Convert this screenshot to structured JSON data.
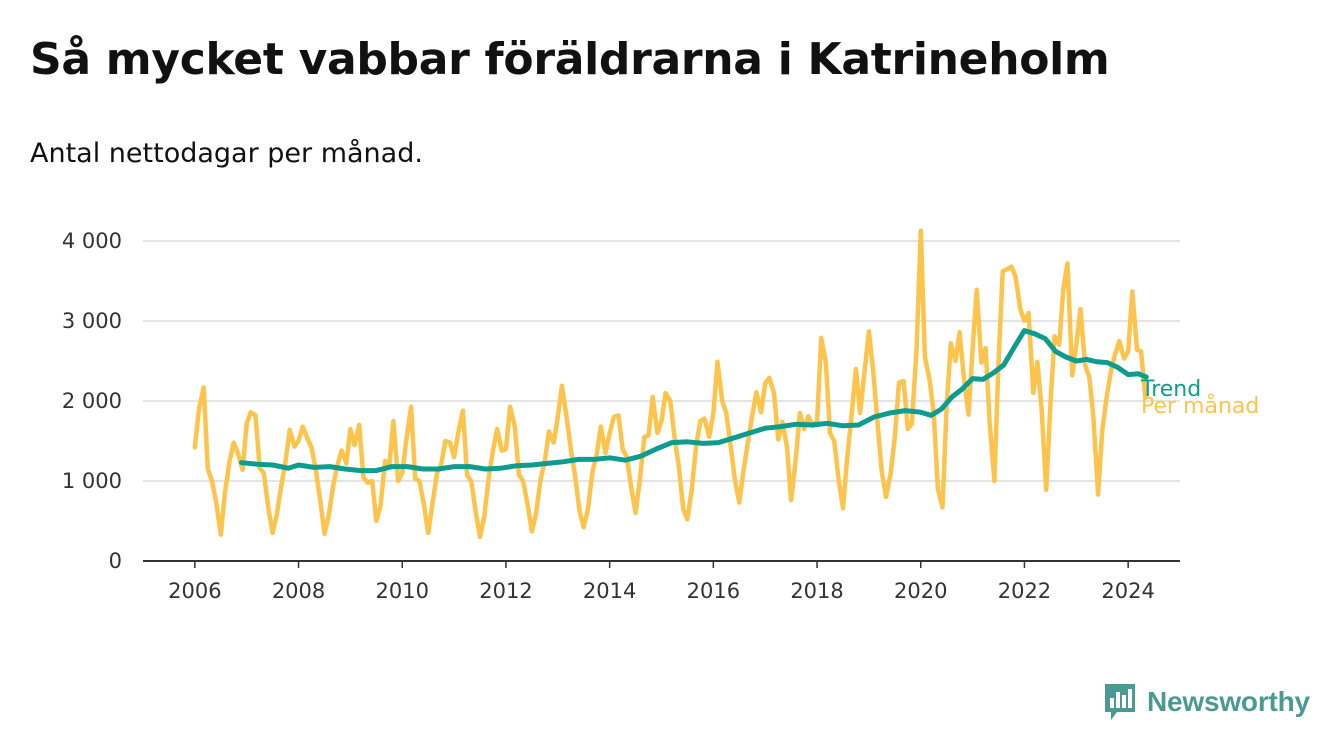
{
  "header": {
    "title": "Så mycket vabbar föräldrarna i Katrineholm",
    "subtitle": "Antal nettodagar per månad."
  },
  "brand": {
    "name": "Newsworthy",
    "icon": "bar-chart-speech-icon",
    "color": "#4a9a93"
  },
  "chart_data": {
    "type": "line",
    "x_axis": {
      "min": 2005.0,
      "max": 2025.0,
      "ticks": [
        "2006",
        "2008",
        "2010",
        "2012",
        "2014",
        "2016",
        "2018",
        "2020",
        "2022",
        "2024"
      ]
    },
    "y_axis": {
      "min": 0,
      "max": 4200,
      "ticks": [
        0,
        1000,
        2000,
        3000,
        4000
      ],
      "tick_labels": [
        "0",
        "1 000",
        "2 000",
        "3 000",
        "4 000"
      ]
    },
    "grid": "horizontal",
    "legend": "end-of-line labels",
    "series": [
      {
        "name": "Per månad",
        "color": "#fcc44c",
        "x": [
          2006.0,
          2006.08,
          2006.17,
          2006.25,
          2006.33,
          2006.42,
          2006.5,
          2006.58,
          2006.67,
          2006.75,
          2006.83,
          2006.92,
          2007.0,
          2007.08,
          2007.17,
          2007.25,
          2007.33,
          2007.42,
          2007.5,
          2007.58,
          2007.67,
          2007.75,
          2007.83,
          2007.92,
          2008.0,
          2008.08,
          2008.17,
          2008.25,
          2008.33,
          2008.42,
          2008.5,
          2008.58,
          2008.67,
          2008.75,
          2008.83,
          2008.92,
          2009.0,
          2009.08,
          2009.17,
          2009.25,
          2009.33,
          2009.42,
          2009.5,
          2009.58,
          2009.67,
          2009.75,
          2009.83,
          2009.92,
          2010.0,
          2010.08,
          2010.17,
          2010.25,
          2010.33,
          2010.42,
          2010.5,
          2010.58,
          2010.67,
          2010.75,
          2010.83,
          2010.92,
          2011.0,
          2011.08,
          2011.17,
          2011.25,
          2011.33,
          2011.42,
          2011.5,
          2011.58,
          2011.67,
          2011.75,
          2011.83,
          2011.92,
          2012.0,
          2012.08,
          2012.17,
          2012.25,
          2012.33,
          2012.42,
          2012.5,
          2012.58,
          2012.67,
          2012.75,
          2012.83,
          2012.92,
          2013.0,
          2013.08,
          2013.17,
          2013.25,
          2013.33,
          2013.42,
          2013.5,
          2013.58,
          2013.67,
          2013.75,
          2013.83,
          2013.92,
          2014.0,
          2014.08,
          2014.17,
          2014.25,
          2014.33,
          2014.42,
          2014.5,
          2014.58,
          2014.67,
          2014.75,
          2014.83,
          2014.92,
          2015.0,
          2015.08,
          2015.17,
          2015.25,
          2015.33,
          2015.42,
          2015.5,
          2015.58,
          2015.67,
          2015.75,
          2015.83,
          2015.92,
          2016.0,
          2016.08,
          2016.17,
          2016.25,
          2016.33,
          2016.42,
          2016.5,
          2016.58,
          2016.67,
          2016.75,
          2016.83,
          2016.92,
          2017.0,
          2017.08,
          2017.17,
          2017.25,
          2017.33,
          2017.42,
          2017.5,
          2017.58,
          2017.67,
          2017.75,
          2017.83,
          2017.92,
          2018.0,
          2018.08,
          2018.17,
          2018.25,
          2018.33,
          2018.42,
          2018.5,
          2018.58,
          2018.67,
          2018.75,
          2018.83,
          2018.92,
          2019.0,
          2019.08,
          2019.17,
          2019.25,
          2019.33,
          2019.42,
          2019.5,
          2019.58,
          2019.67,
          2019.75,
          2019.83,
          2019.92,
          2020.0,
          2020.08,
          2020.17,
          2020.25,
          2020.33,
          2020.42,
          2020.5,
          2020.58,
          2020.67,
          2020.75,
          2020.83,
          2020.92,
          2021.0,
          2021.08,
          2021.17,
          2021.25,
          2021.33,
          2021.42,
          2021.5,
          2021.58,
          2021.67,
          2021.75,
          2021.83,
          2021.92,
          2022.0,
          2022.08,
          2022.17,
          2022.25,
          2022.33,
          2022.42,
          2022.5,
          2022.58,
          2022.67,
          2022.75,
          2022.83,
          2022.92,
          2023.0,
          2023.08,
          2023.17,
          2023.25,
          2023.33,
          2023.42,
          2023.5,
          2023.58,
          2023.67,
          2023.75,
          2023.83,
          2023.92,
          2024.0,
          2024.08,
          2024.17,
          2024.25,
          2024.33
        ],
        "values": [
          1420,
          1900,
          2170,
          1150,
          1000,
          700,
          330,
          850,
          1250,
          1480,
          1350,
          1140,
          1720,
          1860,
          1820,
          1160,
          1100,
          650,
          350,
          580,
          950,
          1250,
          1640,
          1430,
          1500,
          1680,
          1530,
          1420,
          1150,
          750,
          340,
          560,
          950,
          1200,
          1380,
          1220,
          1650,
          1450,
          1700,
          1050,
          980,
          1000,
          500,
          690,
          1250,
          1200,
          1750,
          1000,
          1100,
          1520,
          1930,
          1030,
          1000,
          700,
          350,
          700,
          1100,
          1200,
          1500,
          1480,
          1300,
          1600,
          1880,
          1070,
          1000,
          600,
          300,
          550,
          1050,
          1380,
          1650,
          1380,
          1400,
          1930,
          1680,
          1080,
          1000,
          700,
          370,
          590,
          1030,
          1250,
          1620,
          1480,
          1800,
          2190,
          1800,
          1400,
          1080,
          620,
          420,
          650,
          1120,
          1330,
          1680,
          1350,
          1600,
          1800,
          1820,
          1400,
          1300,
          900,
          600,
          1000,
          1550,
          1570,
          2050,
          1600,
          1750,
          2100,
          2000,
          1550,
          1200,
          650,
          520,
          880,
          1450,
          1750,
          1780,
          1550,
          1850,
          2490,
          2000,
          1850,
          1450,
          1000,
          730,
          1120,
          1500,
          1820,
          2110,
          1860,
          2220,
          2290,
          2100,
          1520,
          1740,
          1430,
          760,
          1220,
          1850,
          1650,
          1810,
          1690,
          1750,
          2790,
          2470,
          1600,
          1500,
          1000,
          660,
          1280,
          1850,
          2400,
          1850,
          2400,
          2870,
          2400,
          1700,
          1100,
          800,
          1100,
          1550,
          2230,
          2250,
          1650,
          1720,
          2660,
          4130,
          2550,
          2260,
          1850,
          900,
          670,
          1950,
          2720,
          2500,
          2860,
          2300,
          1830,
          2650,
          3390,
          2480,
          2660,
          1720,
          1000,
          2480,
          3620,
          3650,
          3680,
          3550,
          3150,
          3000,
          3100,
          2100,
          2490,
          1900,
          890,
          1950,
          2810,
          2700,
          3400,
          3720,
          2320,
          2700,
          3150,
          2450,
          2300,
          1800,
          830,
          1620,
          2030,
          2380,
          2590,
          2750,
          2530,
          2620,
          3370,
          2640,
          2620,
          2040
        ]
      },
      {
        "name": "Trend",
        "color": "#0d9c8d",
        "x": [
          2006.9,
          2007.2,
          2007.5,
          2007.8,
          2008.0,
          2008.3,
          2008.6,
          2008.9,
          2009.2,
          2009.5,
          2009.8,
          2010.1,
          2010.4,
          2010.7,
          2011.0,
          2011.3,
          2011.6,
          2011.9,
          2012.2,
          2012.5,
          2012.8,
          2013.1,
          2013.4,
          2013.7,
          2014.0,
          2014.3,
          2014.6,
          2014.9,
          2015.2,
          2015.5,
          2015.8,
          2016.1,
          2016.4,
          2016.7,
          2017.0,
          2017.3,
          2017.6,
          2017.9,
          2018.2,
          2018.5,
          2018.8,
          2019.1,
          2019.4,
          2019.7,
          2020.0,
          2020.2,
          2020.4,
          2020.6,
          2020.8,
          2021.0,
          2021.2,
          2021.4,
          2021.6,
          2021.8,
          2022.0,
          2022.2,
          2022.4,
          2022.6,
          2022.8,
          2023.0,
          2023.2,
          2023.4,
          2023.6,
          2023.8,
          2024.0,
          2024.2,
          2024.35
        ],
        "values": [
          1230,
          1210,
          1200,
          1160,
          1200,
          1170,
          1180,
          1150,
          1130,
          1130,
          1180,
          1180,
          1150,
          1150,
          1180,
          1180,
          1150,
          1160,
          1190,
          1200,
          1220,
          1240,
          1270,
          1270,
          1290,
          1260,
          1310,
          1400,
          1480,
          1490,
          1470,
          1480,
          1540,
          1600,
          1660,
          1680,
          1710,
          1700,
          1720,
          1690,
          1700,
          1800,
          1850,
          1880,
          1860,
          1820,
          1900,
          2050,
          2150,
          2280,
          2270,
          2350,
          2450,
          2670,
          2880,
          2840,
          2780,
          2620,
          2550,
          2500,
          2520,
          2490,
          2480,
          2420,
          2330,
          2340,
          2300
        ]
      }
    ]
  }
}
